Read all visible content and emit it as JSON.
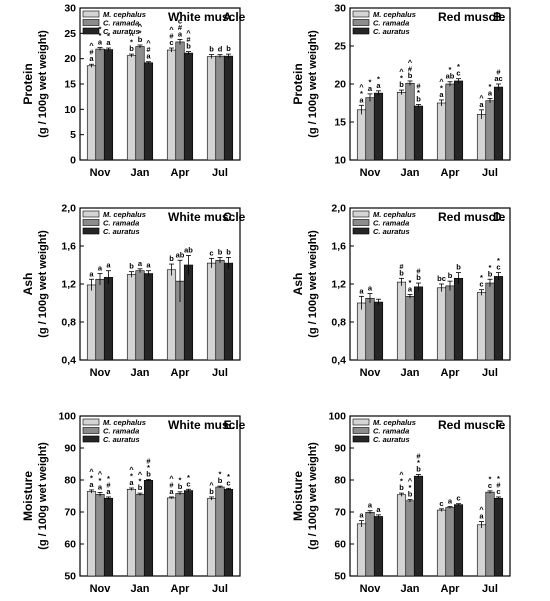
{
  "legend": {
    "entries": [
      {
        "name": "M. cephalus",
        "color": "#d4d4d4"
      },
      {
        "name": "C. ramada",
        "color": "#8c8c8c"
      },
      {
        "name": "C. auratus",
        "color": "#262626"
      }
    ]
  },
  "chart_data": [
    {
      "type": "bar",
      "panel": "A.",
      "title": "White muscle",
      "ylabel": "Protein",
      "ylabel2": "(g / 100g wet weight)",
      "ylim": [
        0,
        30
      ],
      "yticks": [
        "0",
        "5",
        "10",
        "15",
        "20",
        "25",
        "30"
      ],
      "categories": [
        "Nov",
        "Jan",
        "Apr",
        "Jul"
      ],
      "series": [
        {
          "name": "M. cephalus",
          "values": [
            18.6,
            20.6,
            21.7,
            20.4
          ],
          "errors": [
            0.3,
            0.3,
            0.4,
            0.4
          ]
        },
        {
          "name": "C. ramada",
          "values": [
            21.9,
            22.4,
            23.3,
            20.5
          ],
          "errors": [
            0.3,
            0.3,
            0.5,
            0.3
          ]
        },
        {
          "name": "C. auratus",
          "values": [
            21.8,
            19.2,
            21.1,
            20.5
          ],
          "errors": [
            0.3,
            0.2,
            0.3,
            0.4
          ]
        }
      ],
      "annotations": [
        [
          "^\n#\na",
          "*\n*\na",
          "*\na"
        ],
        [
          "^\n*\nb",
          "^\n*\nb",
          "^\n#\na"
        ],
        [
          "^\n#\nc",
          "^\nc\n#\na",
          "^\n#\nb"
        ],
        [
          "b",
          "d",
          "b"
        ]
      ]
    },
    {
      "type": "bar",
      "panel": "B.",
      "title": "Red muscle",
      "ylabel": "Protein",
      "ylabel2": "(g / 100g wet weight)",
      "ylim": [
        10,
        30
      ],
      "yticks": [
        "10",
        "15",
        "20",
        "25",
        "30"
      ],
      "categories": [
        "Nov",
        "Jan",
        "Apr",
        "Jul"
      ],
      "series": [
        {
          "name": "M. cephalus",
          "values": [
            16.6,
            18.9,
            17.5,
            16.0
          ],
          "errors": [
            0.6,
            0.3,
            0.4,
            0.6
          ]
        },
        {
          "name": "C. ramada",
          "values": [
            18.2,
            20.1,
            20.0,
            17.8
          ],
          "errors": [
            0.5,
            0.3,
            0.3,
            0.3
          ]
        },
        {
          "name": "C. auratus",
          "values": [
            18.8,
            17.1,
            20.4,
            19.6
          ],
          "errors": [
            0.3,
            0.2,
            0.3,
            0.4
          ]
        }
      ],
      "annotations": [
        [
          "^\n*\na",
          "*\na",
          "*\na"
        ],
        [
          "^\n*\nb",
          "^\n#\nb",
          "#\n*\nb"
        ],
        [
          "^\n*\na",
          "*\nab",
          "*\nc"
        ],
        [
          "^\na",
          "*\na",
          "#\nac"
        ]
      ]
    },
    {
      "type": "bar",
      "panel": "C.",
      "title": "White muscle",
      "ylabel": "Ash",
      "ylabel2": "(g / 100g wet weight)",
      "ylim": [
        0.4,
        2.0
      ],
      "yticks": [
        "0,4",
        "0,8",
        "1,2",
        "1,6",
        "2,0"
      ],
      "categories": [
        "Nov",
        "Jan",
        "Apr",
        "Jul"
      ],
      "series": [
        {
          "name": "M. cephalus",
          "values": [
            1.19,
            1.3,
            1.35,
            1.42
          ],
          "errors": [
            0.06,
            0.03,
            0.06,
            0.05
          ]
        },
        {
          "name": "C. ramada",
          "values": [
            1.25,
            1.34,
            1.23,
            1.45
          ],
          "errors": [
            0.06,
            0.02,
            0.22,
            0.03
          ]
        },
        {
          "name": "C. auratus",
          "values": [
            1.27,
            1.31,
            1.4,
            1.42
          ],
          "errors": [
            0.07,
            0.03,
            0.1,
            0.06
          ]
        }
      ],
      "annotations": [
        [
          "a",
          "a",
          "a"
        ],
        [
          "b",
          "a",
          "a"
        ],
        [
          "b",
          "ab",
          "ab"
        ],
        [
          "c",
          "b",
          "b"
        ]
      ]
    },
    {
      "type": "bar",
      "panel": "D.",
      "title": "Red muscle",
      "ylabel": "Ash",
      "ylabel2": "(g / 100g wet weight)",
      "ylim": [
        0.4,
        2.0
      ],
      "yticks": [
        "0,4",
        "0,8",
        "1,2",
        "1,6",
        "2,0"
      ],
      "categories": [
        "Nov",
        "Jan",
        "Apr",
        "Jul"
      ],
      "series": [
        {
          "name": "M. cephalus",
          "values": [
            1.0,
            1.22,
            1.16,
            1.11
          ],
          "errors": [
            0.07,
            0.04,
            0.04,
            0.03
          ]
        },
        {
          "name": "C. ramada",
          "values": [
            1.05,
            1.07,
            1.18,
            1.21
          ],
          "errors": [
            0.05,
            0.02,
            0.05,
            0.04
          ]
        },
        {
          "name": "C. auratus",
          "values": [
            1.01,
            1.17,
            1.26,
            1.28
          ],
          "errors": [
            0.03,
            0.04,
            0.06,
            0.04
          ]
        }
      ],
      "annotations": [
        [
          "a",
          "a",
          ""
        ],
        [
          "#\nb",
          "*\na",
          "#\nb"
        ],
        [
          "bc",
          "b",
          "b"
        ],
        [
          "*\nc",
          "*\nb",
          "*\nc"
        ]
      ]
    },
    {
      "type": "bar",
      "panel": "E.",
      "title": "White muscle",
      "ylabel": "Moisture",
      "ylabel2": "(g / 100g wet weight)",
      "ylim": [
        50,
        100
      ],
      "yticks": [
        "50",
        "60",
        "70",
        "80",
        "90",
        "100"
      ],
      "categories": [
        "Nov",
        "Jan",
        "Apr",
        "Jul"
      ],
      "series": [
        {
          "name": "M. cephalus",
          "values": [
            76.4,
            77.1,
            74.4,
            74.2
          ],
          "errors": [
            0.5,
            0.4,
            0.3,
            0.5
          ]
        },
        {
          "name": "C. ramada",
          "values": [
            75.5,
            75.5,
            75.8,
            77.8
          ],
          "errors": [
            0.6,
            0.4,
            0.5,
            0.3
          ]
        },
        {
          "name": "C. auratus",
          "values": [
            74.3,
            79.9,
            76.7,
            77.1
          ],
          "errors": [
            0.4,
            0.3,
            0.4,
            0.3
          ]
        }
      ],
      "annotations": [
        [
          "^\n*\na",
          "^\n*\na",
          "*\n#\na"
        ],
        [
          "^\n*\na",
          "^\n*\nb",
          "#\n*\nb"
        ],
        [
          "^\n#\na",
          "*\nb",
          "*\nc"
        ],
        [
          "^\nb",
          "*\nb",
          "*\nc"
        ]
      ]
    },
    {
      "type": "bar",
      "panel": "F.",
      "title": "Red muscle",
      "ylabel": "Moisture",
      "ylabel2": "(g / 100g wet weight)",
      "ylim": [
        50,
        100
      ],
      "yticks": [
        "50",
        "60",
        "70",
        "80",
        "90",
        "100"
      ],
      "categories": [
        "Nov",
        "Jan",
        "Apr",
        "Jul"
      ],
      "series": [
        {
          "name": "M. cephalus",
          "values": [
            66.3,
            75.4,
            70.6,
            66.0
          ],
          "errors": [
            1.0,
            0.5,
            0.4,
            1.0
          ]
        },
        {
          "name": "C. ramada",
          "values": [
            69.9,
            73.5,
            71.4,
            76.2
          ],
          "errors": [
            0.5,
            0.4,
            0.3,
            0.4
          ]
        },
        {
          "name": "C. auratus",
          "values": [
            68.6,
            81.2,
            72.3,
            74.3
          ],
          "errors": [
            0.5,
            0.5,
            0.3,
            0.4
          ]
        }
      ],
      "annotations": [
        [
          "a",
          "a",
          "a"
        ],
        [
          "^\n*\nb",
          "^\n*\nb",
          "#\n*\nb"
        ],
        [
          "c",
          "a",
          "c"
        ],
        [
          "^\na",
          "*\nc",
          "*\n#\nc"
        ]
      ]
    }
  ]
}
